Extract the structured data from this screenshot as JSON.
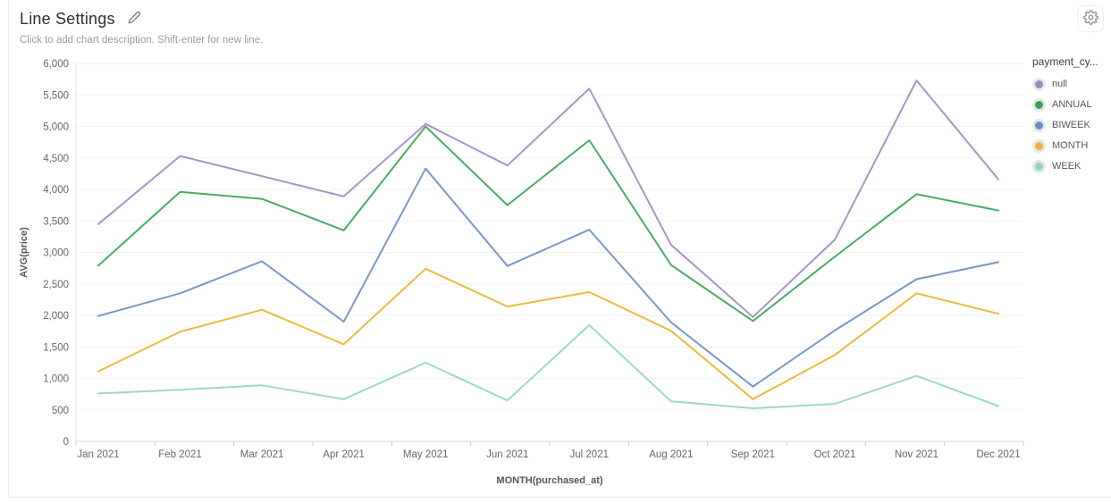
{
  "header": {
    "title": "Line Settings",
    "description": "Click to add chart description. Shift-enter for new line."
  },
  "chart_data": {
    "type": "line",
    "x": [
      "Jan 2021",
      "Feb 2021",
      "Mar 2021",
      "Apr 2021",
      "May 2021",
      "Jun 2021",
      "Jul 2021",
      "Aug 2021",
      "Sep 2021",
      "Oct 2021",
      "Nov 2021",
      "Dec 2021"
    ],
    "xlabel": "MONTH(purchased_at)",
    "ylabel": "AVG(price)",
    "ylim": [
      0,
      6000
    ],
    "ytick_step": 500,
    "grid": true,
    "legend_position": "right",
    "legend_title": "payment_cy...",
    "series": [
      {
        "name": "null",
        "color": "#a18bc2",
        "values": [
          3450,
          4530,
          4210,
          3890,
          5040,
          4380,
          5600,
          3120,
          1975,
          3200,
          5730,
          4160
        ]
      },
      {
        "name": "ANNUAL",
        "color": "#38a457",
        "values": [
          2790,
          3960,
          3850,
          3350,
          5000,
          3750,
          4780,
          2800,
          1910,
          2930,
          3925,
          3665
        ]
      },
      {
        "name": "BIWEEK",
        "color": "#6b8fc3",
        "values": [
          1990,
          2350,
          2860,
          1900,
          4330,
          2785,
          3360,
          1890,
          870,
          1760,
          2575,
          2845
        ]
      },
      {
        "name": "MONTH",
        "color": "#e9b52f",
        "values": [
          1110,
          1740,
          2090,
          1540,
          2740,
          2140,
          2370,
          1755,
          670,
          1370,
          2350,
          2025
        ]
      },
      {
        "name": "WEEK",
        "color": "#94d6bf",
        "values": [
          760,
          820,
          890,
          670,
          1250,
          650,
          1845,
          635,
          525,
          595,
          1040,
          560
        ]
      }
    ],
    "axis_colors": {
      "grid": "#f2f2f2",
      "axis_line": "#d4d4d4",
      "left_line": "#e2e2e2",
      "tick": "#cccccc",
      "label": "#666666",
      "axis_title": "#555555"
    }
  }
}
